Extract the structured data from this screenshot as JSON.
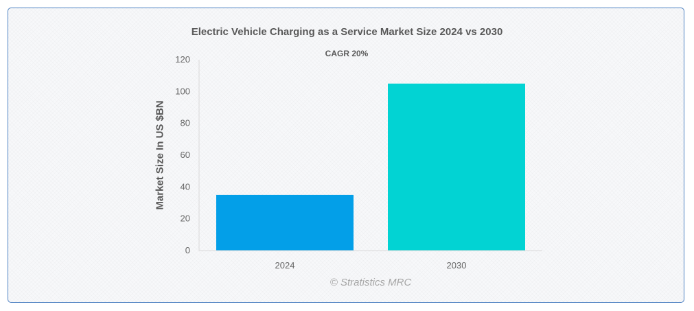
{
  "chart_data": {
    "type": "bar",
    "title": "Electric Vehicle Charging as a Service Market Size 2024 vs 2030",
    "subtitle": "CAGR 20%",
    "xlabel": "",
    "ylabel": "Market Size In US $BN",
    "categories": [
      "2024",
      "2030"
    ],
    "values": [
      35,
      105
    ],
    "colors": [
      "#039fe8",
      "#02d3d3"
    ],
    "ylim": [
      0,
      120
    ],
    "yticks": [
      0,
      20,
      40,
      60,
      80,
      100,
      120
    ],
    "grid": false,
    "legend": "none"
  },
  "watermark": "© Stratistics MRC"
}
